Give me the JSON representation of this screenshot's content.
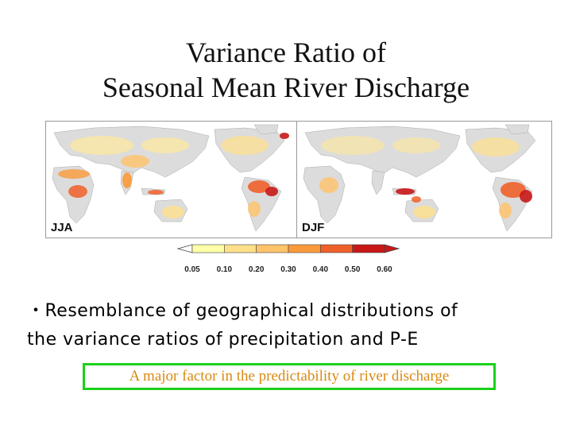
{
  "slide": {
    "title_line1": "Variance Ratio of",
    "title_line2": "Seasonal Mean River Discharge"
  },
  "maps": [
    {
      "label": "JJA"
    },
    {
      "label": "DJF"
    }
  ],
  "colorbar": {
    "ticks": [
      "0.05",
      "0.10",
      "0.20",
      "0.30",
      "0.40",
      "0.50",
      "0.60"
    ],
    "colors": [
      "#ffffff",
      "#ffffa8",
      "#ffe08a",
      "#ffc36a",
      "#fb9a3a",
      "#f0602a",
      "#c81818"
    ]
  },
  "bullet": {
    "line1": "・Resemblance of geographical distributions of",
    "line2": "the variance ratios of precipitation and P-E"
  },
  "highlight": {
    "text": "A major factor in the predictability of river discharge",
    "border_color": "#1bd11b",
    "text_color": "#d88a12"
  }
}
